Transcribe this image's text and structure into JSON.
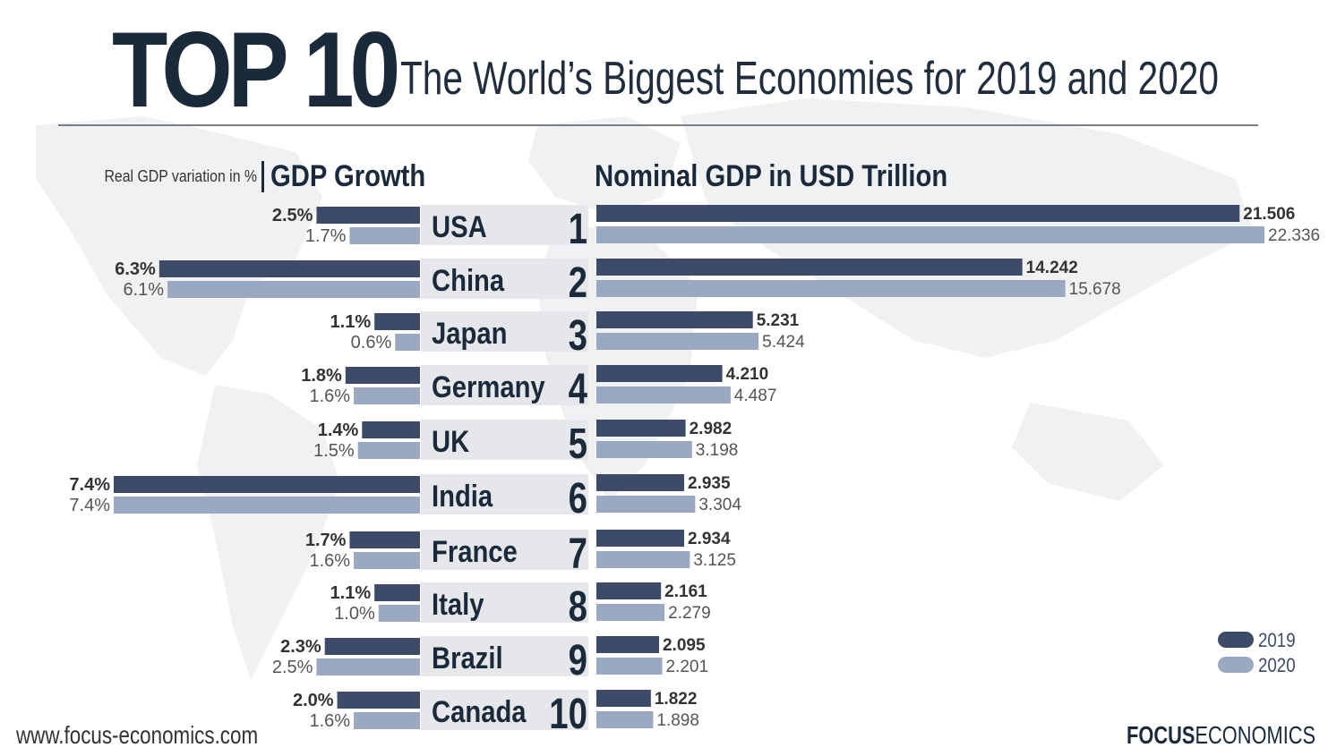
{
  "header": {
    "title_main": "TOP 10",
    "title_sub": "The World’s Biggest Economies for 2019 and 2020",
    "left_note": "Real GDP variation in %",
    "left_heading": "GDP Growth",
    "right_heading": "Nominal GDP in USD Trillion"
  },
  "legend": [
    {
      "label": "2019",
      "color": "#3d4a68"
    },
    {
      "label": "2020",
      "color": "#9aa8c2"
    }
  ],
  "footer": {
    "url": "www.focus-economics.com",
    "brand_bold": "FOCUS",
    "brand_rest": "ECONOMICS"
  },
  "colors": {
    "series_2019": "#3d4a68",
    "series_2020": "#9aa8c2",
    "row_band": "#e6e7ea",
    "text_dark": "#1a2a3a"
  },
  "chart_data": [
    {
      "type": "bar",
      "title": "GDP Growth",
      "subtitle": "Real GDP variation in %",
      "orientation": "horizontal",
      "direction": "right-to-left",
      "categories": [
        "USA",
        "China",
        "Japan",
        "Germany",
        "UK",
        "India",
        "France",
        "Italy",
        "Brazil",
        "Canada"
      ],
      "series": [
        {
          "name": "2019",
          "values": [
            2.5,
            6.3,
            1.1,
            1.8,
            1.4,
            7.4,
            1.7,
            1.1,
            2.3,
            2.0
          ],
          "labels": [
            "2.5%",
            "6.3%",
            "1.1%",
            "1.8%",
            "1.4%",
            "7.4%",
            "1.7%",
            "1.1%",
            "2.3%",
            "2.0%"
          ]
        },
        {
          "name": "2020",
          "values": [
            1.7,
            6.1,
            0.6,
            1.6,
            1.5,
            7.4,
            1.6,
            1.0,
            2.5,
            1.6
          ],
          "labels": [
            "1.7%",
            "6.1%",
            "0.6%",
            "1.6%",
            "1.5%",
            "7.4%",
            "1.6%",
            "1.0%",
            "2.5%",
            "1.6%"
          ]
        }
      ],
      "xlim": [
        0,
        7.4
      ],
      "grid": false,
      "legend": "bottom-right"
    },
    {
      "type": "bar",
      "title": "Nominal GDP in USD Trillion",
      "orientation": "horizontal",
      "categories": [
        "USA",
        "China",
        "Japan",
        "Germany",
        "UK",
        "India",
        "France",
        "Italy",
        "Brazil",
        "Canada"
      ],
      "ranks": [
        "1",
        "2",
        "3",
        "4",
        "5",
        "6",
        "7",
        "8",
        "9",
        "10"
      ],
      "series": [
        {
          "name": "2019",
          "values": [
            21.506,
            14.242,
            5.231,
            4.21,
            2.982,
            2.935,
            2.934,
            2.161,
            2.095,
            1.822
          ],
          "labels": [
            "21.506",
            "14.242",
            "5.231",
            "4.210",
            "2.982",
            "2.935",
            "2.934",
            "2.161",
            "2.095",
            "1.822"
          ]
        },
        {
          "name": "2020",
          "values": [
            22.336,
            15.678,
            5.424,
            4.487,
            3.198,
            3.304,
            3.125,
            2.279,
            2.201,
            1.898
          ],
          "labels": [
            "22.336",
            "15.678",
            "5.424",
            "4.487",
            "3.198",
            "3.304",
            "3.125",
            "2.279",
            "2.201",
            "1.898"
          ]
        }
      ],
      "xlim": [
        0,
        22.336
      ],
      "grid": false,
      "legend": "bottom-right"
    }
  ]
}
